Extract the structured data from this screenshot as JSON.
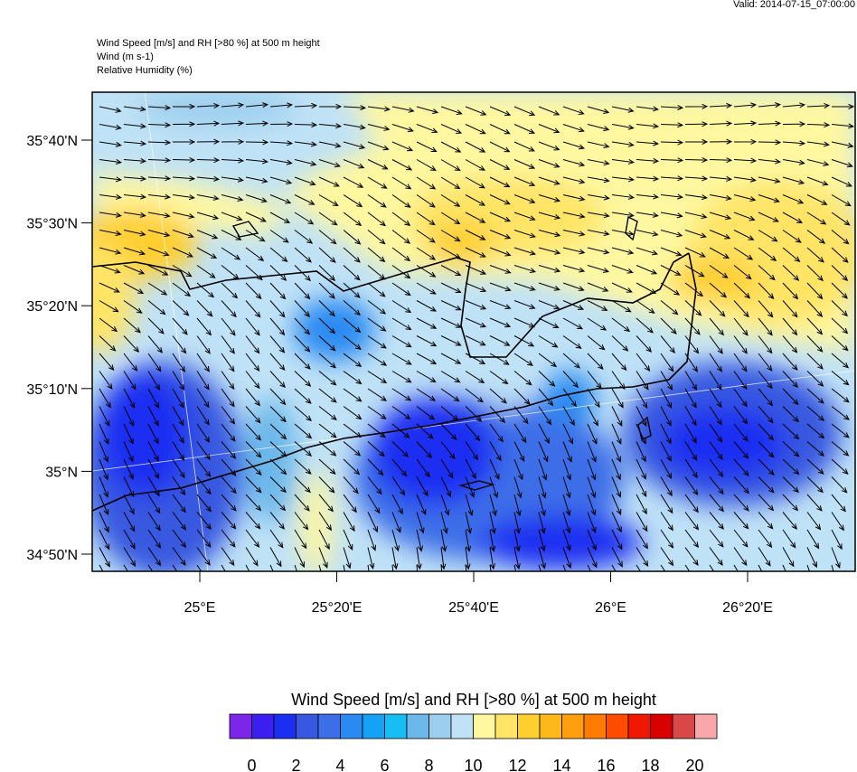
{
  "header": {
    "valid": "Valid: 2014-07-15_07:00:00",
    "lines": [
      "Wind Speed [m/s] and RH [>80 %] at 500 m height",
      "Wind   (m s-1)",
      "Relative Humidity   (%)"
    ]
  },
  "map": {
    "lat_labels": [
      "35°40'N",
      "35°30'N",
      "35°20'N",
      "35°10'N",
      "35°N",
      "34°50'N"
    ],
    "lon_labels": [
      "25°E",
      "25°20'E",
      "25°40'E",
      "26°E",
      "26°20'E"
    ]
  },
  "colorbar": {
    "title": "Wind Speed [m/s] and RH [>80 %] at 500 m height",
    "colors": [
      "#7b26e8",
      "#3b1ff0",
      "#1b2ff2",
      "#3858e0",
      "#3c6ee8",
      "#2a8af2",
      "#15a2f4",
      "#18bdf4",
      "#6cb8ea",
      "#9ccfee",
      "#c0e2f6",
      "#fff8a0",
      "#ffe466",
      "#ffcf30",
      "#ffb81a",
      "#ff9e0e",
      "#ff7c00",
      "#ff4c00",
      "#f01800",
      "#d80000",
      "#d84848",
      "#f8a8a8"
    ],
    "ticks": [
      0,
      2,
      4,
      6,
      8,
      10,
      12,
      14,
      16,
      18,
      20
    ]
  }
}
